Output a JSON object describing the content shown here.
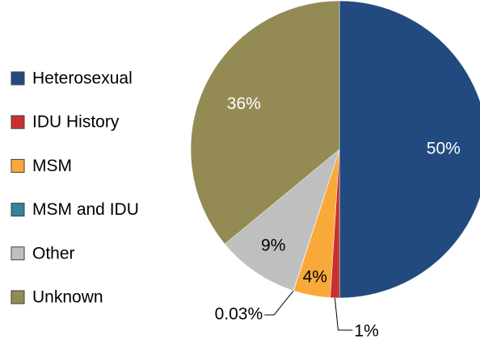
{
  "chart_data": {
    "type": "pie",
    "categories": [
      "Heterosexual",
      "IDU History",
      "MSM",
      "MSM and IDU",
      "Other",
      "Unknown"
    ],
    "values": [
      50,
      1,
      4,
      0.03,
      9,
      36
    ],
    "value_labels": [
      "50%",
      "1%",
      "4%",
      "0.03%",
      "9%",
      "36%"
    ],
    "colors": [
      "#234a7e",
      "#c8302f",
      "#f9a93a",
      "#31849b",
      "#bfbfbf",
      "#948a54"
    ],
    "legend": "left"
  }
}
